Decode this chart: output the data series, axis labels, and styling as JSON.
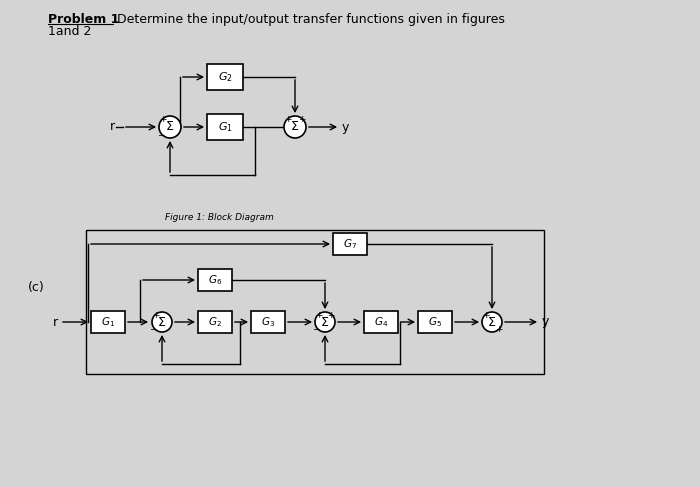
{
  "title_bold": "Problem 1",
  "title_rest": " Determine the input/output transfer functions given in figures",
  "title_line2": "1and 2",
  "bg_color": "#d4d4d4",
  "fig1_caption": "Figure 1: Block Diagram",
  "label_c": "(c)"
}
